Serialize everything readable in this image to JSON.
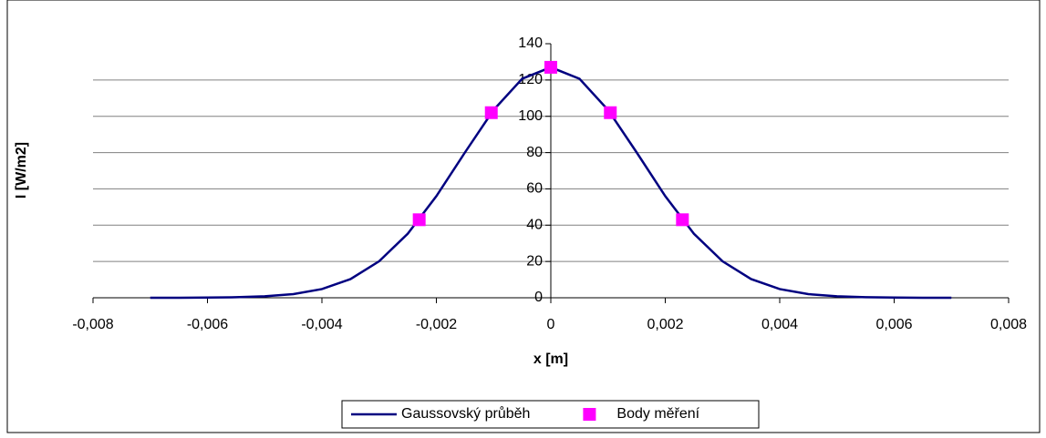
{
  "chart_data": {
    "type": "scatter",
    "xlabel": "x [m]",
    "ylabel": "I [W/m2]",
    "xlim": [
      -0.008,
      0.008
    ],
    "xticks": [
      {
        "value": -0.008,
        "label": "-0,008"
      },
      {
        "value": -0.006,
        "label": "-0,006"
      },
      {
        "value": -0.004,
        "label": "-0,004"
      },
      {
        "value": -0.002,
        "label": "-0,002"
      },
      0,
      {
        "value": 0.002,
        "label": "0,002"
      },
      {
        "value": 0.004,
        "label": "0,004"
      },
      {
        "value": 0.006,
        "label": "0,006"
      },
      {
        "value": 0.008,
        "label": "0,008"
      }
    ],
    "ylim": [
      0,
      140
    ],
    "yticks": [
      0,
      20,
      40,
      60,
      80,
      100,
      120,
      140
    ],
    "grid": true,
    "series": [
      {
        "name": "Gaussovský průběh",
        "color": "#000080",
        "style": "line",
        "x": [
          -0.007,
          -0.0065,
          -0.006,
          -0.0055,
          -0.005,
          -0.0045,
          -0.004,
          -0.0035,
          -0.003,
          -0.0025,
          -0.002,
          -0.0015,
          -0.001,
          -0.0005,
          0,
          0.0005,
          0.001,
          0.0015,
          0.002,
          0.0025,
          0.003,
          0.0035,
          0.004,
          0.0045,
          0.005,
          0.0055,
          0.006,
          0.0065,
          0.007
        ],
        "values": [
          0,
          0,
          0.1,
          0.3,
          0.8,
          2,
          4.8,
          10.3,
          20.1,
          35.3,
          56,
          80.1,
          103.5,
          120.7,
          127,
          120.7,
          103.5,
          80.1,
          56,
          35.3,
          20.1,
          10.3,
          4.8,
          2,
          0.8,
          0.3,
          0.1,
          0,
          0
        ]
      },
      {
        "name": "Body měření",
        "color": "#ff00ff",
        "style": "marker",
        "x": [
          -0.0023,
          -0.00104,
          0,
          0.00104,
          0.0023
        ],
        "values": [
          43,
          102,
          127,
          102,
          43
        ]
      }
    ]
  }
}
